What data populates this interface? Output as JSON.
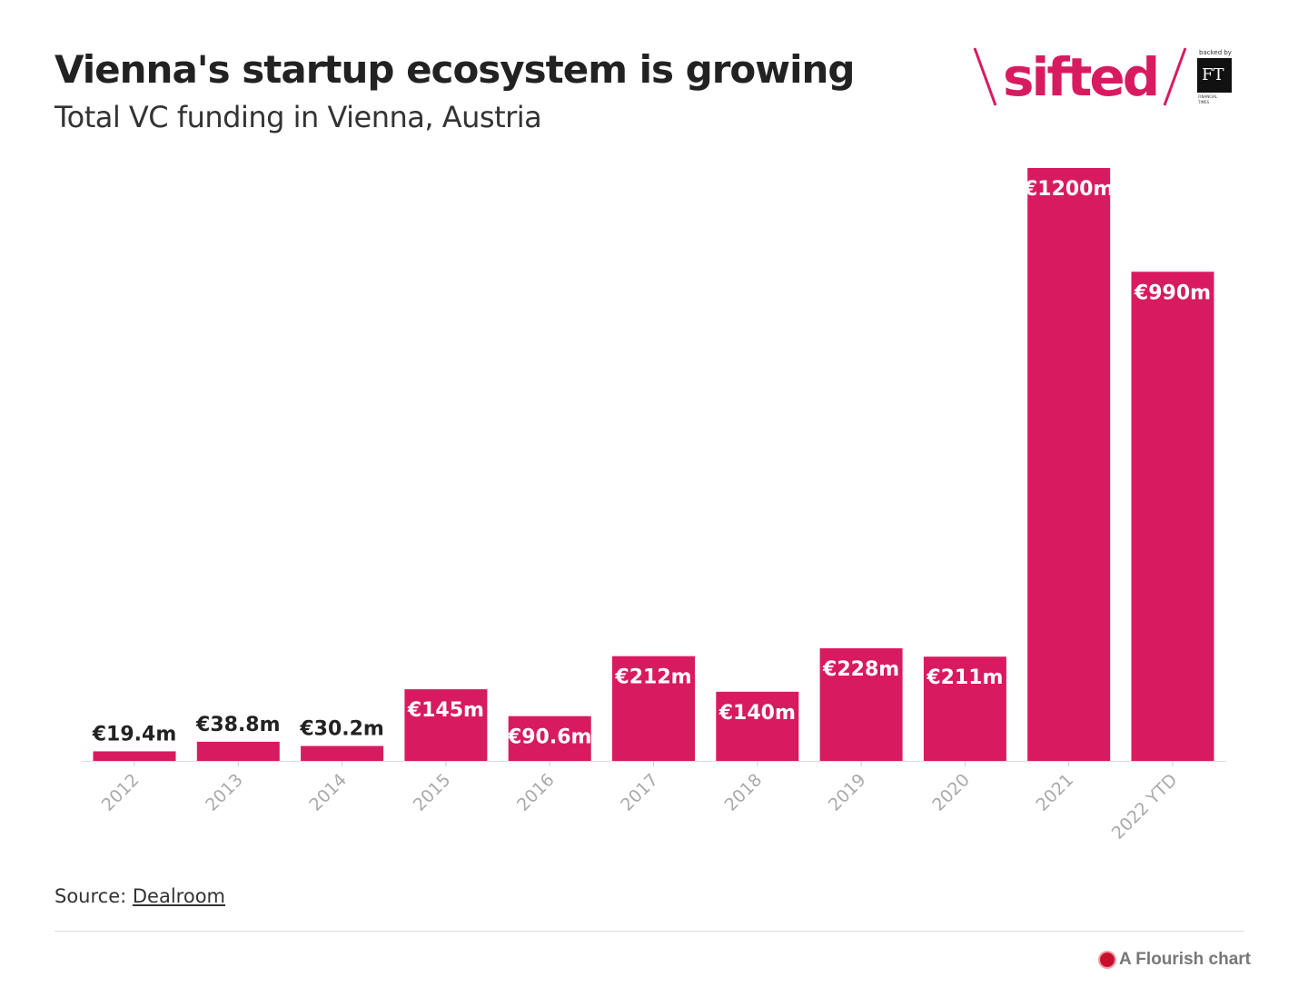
{
  "header": {
    "title": "Vienna's startup ecosystem is growing",
    "subtitle": "Total VC funding in Vienna, Austria"
  },
  "logo": {
    "text": "sifted",
    "backed_by": "backed by",
    "ft": "FT",
    "ft_name": "FINANCIAL TIMES"
  },
  "footer": {
    "source_label": "Source: ",
    "source_link": "Dealroom",
    "credit": "A Flourish chart"
  },
  "chart_data": {
    "type": "bar",
    "title": "Vienna's startup ecosystem is growing",
    "subtitle": "Total VC funding in Vienna, Austria",
    "categories": [
      "2012",
      "2013",
      "2014",
      "2015",
      "2016",
      "2017",
      "2018",
      "2019",
      "2020",
      "2021",
      "2022 YTD"
    ],
    "values": [
      19.4,
      38.8,
      30.2,
      145,
      90.6,
      212,
      140,
      228,
      211,
      1200,
      990
    ],
    "labels": [
      "€19.4m",
      "€38.8m",
      "€30.2m",
      "€145m",
      "€90.6m",
      "€212m",
      "€140m",
      "€228m",
      "€211m",
      "€1200m",
      "€990m"
    ],
    "unit": "€m",
    "ylim": [
      0,
      1200
    ],
    "grid": false,
    "bar_color": "#d81b60"
  }
}
